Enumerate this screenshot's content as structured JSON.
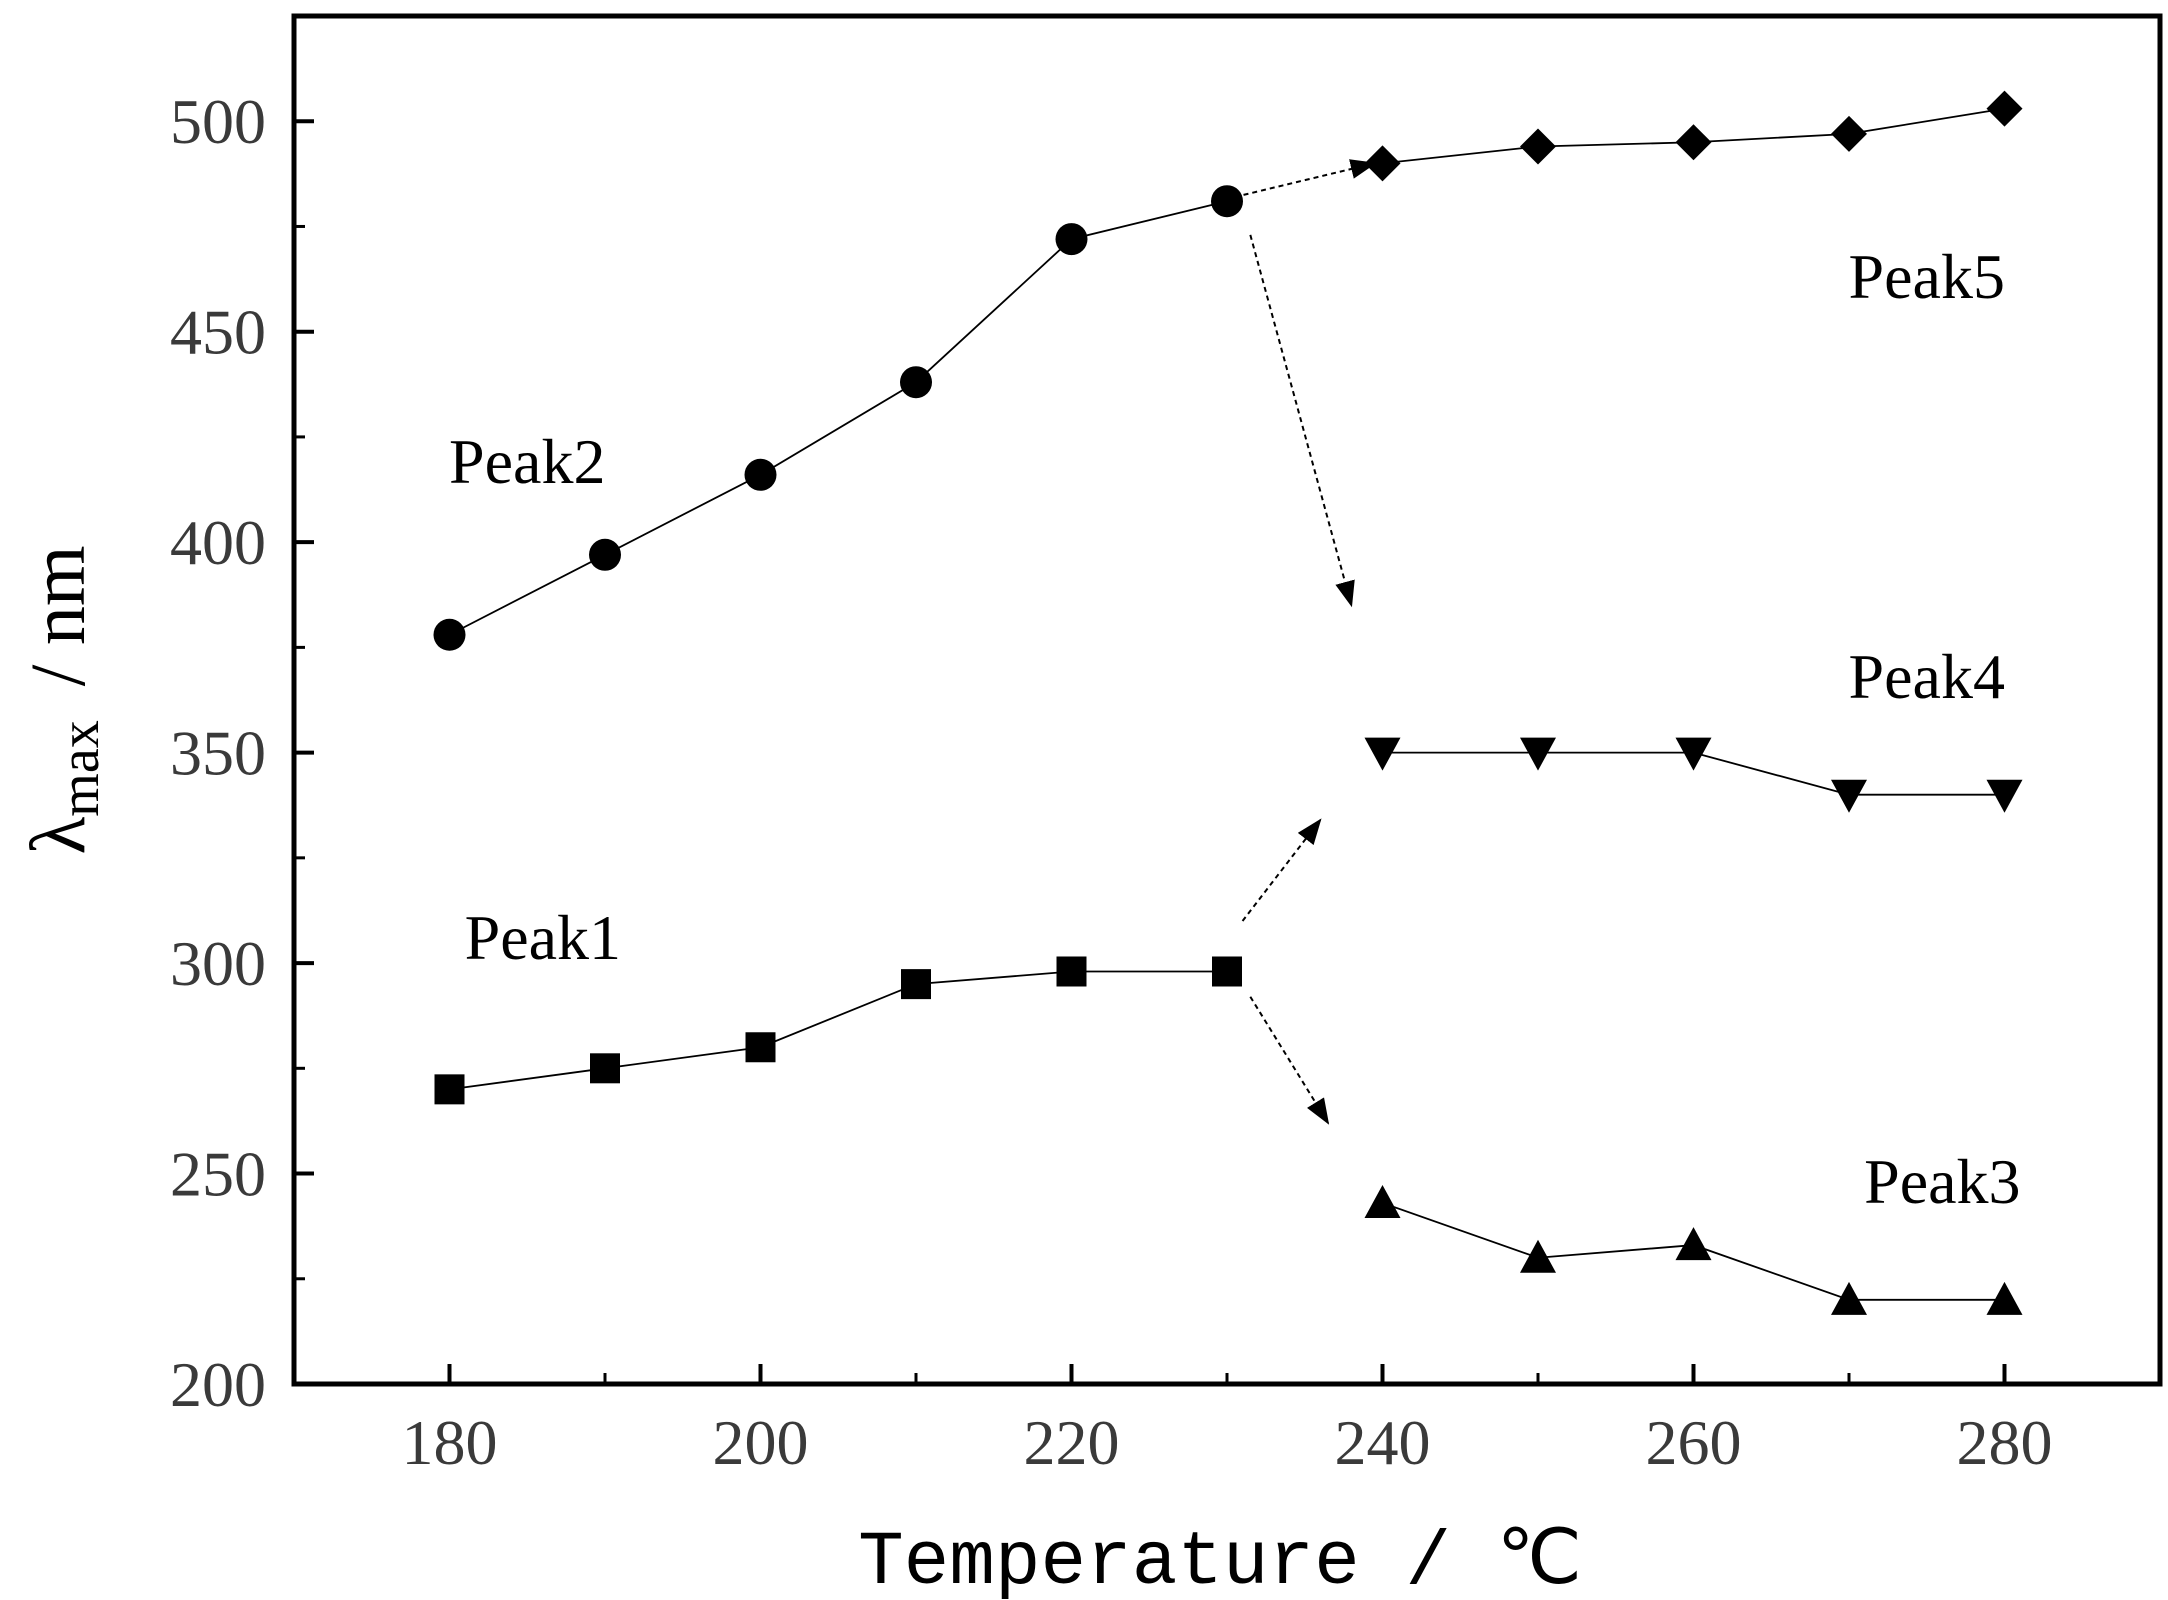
{
  "chart_data": {
    "type": "line",
    "title": "",
    "xlabel": "Temperature / ℃",
    "ylabel": "λmax / nm",
    "ylabel_main": "λ",
    "ylabel_sub": "max",
    "ylabel_unit": "/  nm",
    "xlim": [
      170,
      290
    ],
    "ylim": [
      200,
      525
    ],
    "xticks": [
      180,
      200,
      220,
      240,
      260,
      280
    ],
    "yticks": [
      200,
      250,
      300,
      350,
      400,
      450,
      500
    ],
    "grid": false,
    "series": [
      {
        "name": "Peak1",
        "marker": "square",
        "x": [
          180,
          190,
          200,
          210,
          220,
          230
        ],
        "y": [
          270,
          275,
          280,
          295,
          298,
          298
        ]
      },
      {
        "name": "Peak2",
        "marker": "circle",
        "x": [
          180,
          190,
          200,
          210,
          220,
          230
        ],
        "y": [
          378,
          397,
          416,
          438,
          472,
          481
        ]
      },
      {
        "name": "Peak3",
        "marker": "triangle-up",
        "x": [
          240,
          250,
          260,
          270,
          280
        ],
        "y": [
          243,
          230,
          233,
          220,
          220
        ]
      },
      {
        "name": "Peak4",
        "marker": "triangle-down",
        "x": [
          240,
          250,
          260,
          270,
          280
        ],
        "y": [
          350,
          350,
          350,
          340,
          340
        ]
      },
      {
        "name": "Peak5",
        "marker": "diamond",
        "x": [
          240,
          250,
          260,
          270,
          280
        ],
        "y": [
          490,
          494,
          495,
          497,
          503
        ]
      }
    ],
    "annotations": [
      {
        "name": "Peak2",
        "x": 185,
        "y": 414
      },
      {
        "name": "Peak1",
        "x": 186,
        "y": 301
      },
      {
        "name": "Peak5",
        "x": 275,
        "y": 458
      },
      {
        "name": "Peak4",
        "x": 275,
        "y": 363
      },
      {
        "name": "Peak3",
        "x": 276,
        "y": 243
      }
    ],
    "arrows": [
      {
        "from": [
          230.5,
          482
        ],
        "to": [
          239.5,
          490
        ],
        "target": "Peak5"
      },
      {
        "from": [
          231.5,
          473
        ],
        "to": [
          238,
          385
        ],
        "target": "Peak4"
      },
      {
        "from": [
          231,
          310
        ],
        "to": [
          236,
          334
        ],
        "target": "Peak4"
      },
      {
        "from": [
          231.5,
          292
        ],
        "to": [
          236.5,
          262
        ],
        "target": "Peak3"
      }
    ]
  }
}
